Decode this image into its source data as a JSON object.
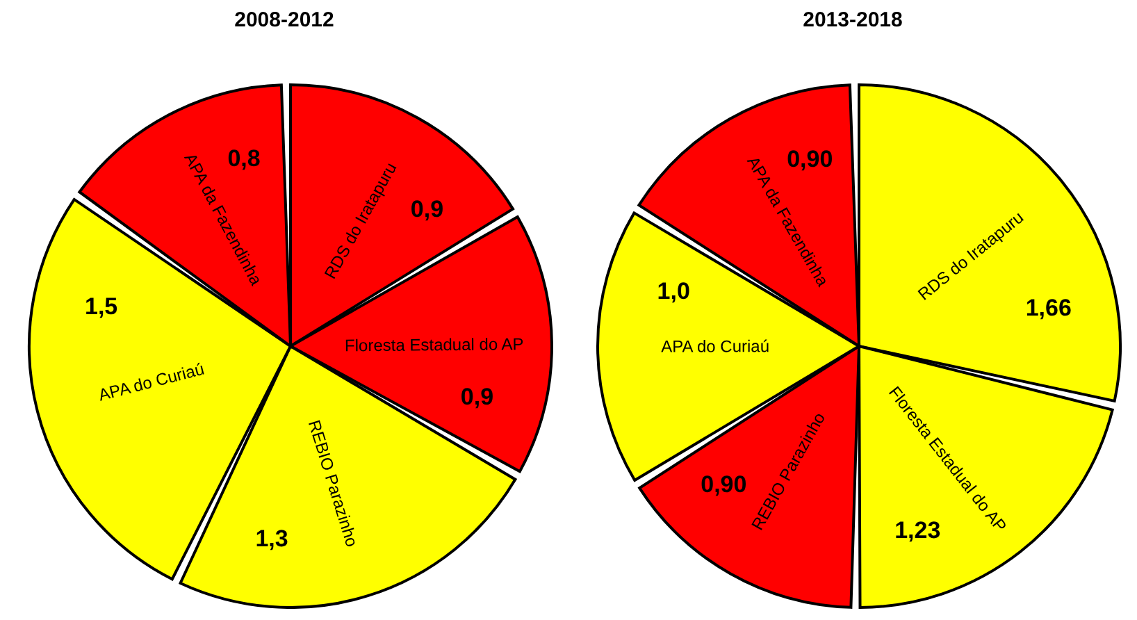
{
  "chart_data": [
    {
      "type": "pie",
      "title": "2008-2012",
      "categories": [
        "RDS do Iratapuru",
        "Floresta Estadual do AP",
        "REBIO Parazinho",
        "APA do Curiaú",
        "APA da Fazendinha"
      ],
      "values": [
        0.9,
        0.9,
        1.3,
        1.5,
        0.8
      ],
      "colors": [
        "#ff0000",
        "#ff0000",
        "#ffff00",
        "#ffff00",
        "#ff0000"
      ],
      "value_labels": [
        "0,9",
        "0,9",
        "1,3",
        "1,5",
        "0,8"
      ]
    },
    {
      "type": "pie",
      "title": "2013-2018",
      "categories": [
        "RDS do Iratapuru",
        "Floresta Estadual do AP",
        "REBIO Parazinho",
        "APA do Curiaú",
        "APA da Fazendinha"
      ],
      "values": [
        1.66,
        1.23,
        0.9,
        1.0,
        0.9
      ],
      "colors": [
        "#ffff00",
        "#ffff00",
        "#ff0000",
        "#ffff00",
        "#ff0000"
      ],
      "value_labels": [
        "1,66",
        "1,23",
        "0,90",
        "1,0",
        "0,90"
      ]
    }
  ]
}
